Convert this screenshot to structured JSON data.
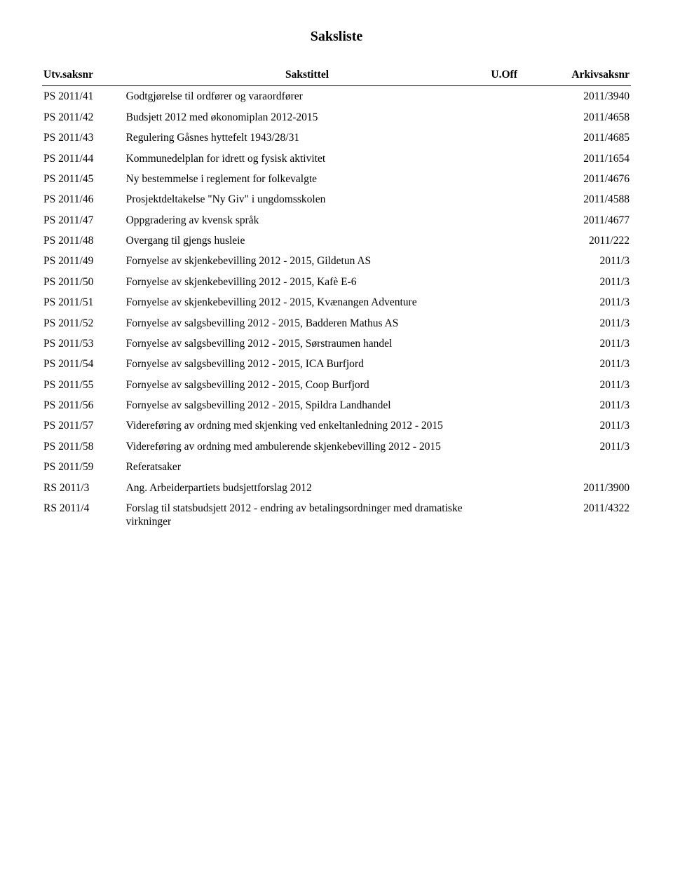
{
  "title": "Saksliste",
  "headers": {
    "id": "Utv.saksnr",
    "title": "Sakstittel",
    "uoff": "U.Off",
    "arkiv": "Arkivsaksnr"
  },
  "rows": [
    {
      "id": "PS 2011/41",
      "title": "Godtgjørelse til ordfører og varaordfører",
      "arkiv": "2011/3940"
    },
    {
      "id": "PS 2011/42",
      "title": "Budsjett 2012 med økonomiplan 2012-2015",
      "arkiv": "2011/4658"
    },
    {
      "id": "PS 2011/43",
      "title": "Regulering Gåsnes hyttefelt 1943/28/31",
      "arkiv": "2011/4685"
    },
    {
      "id": "PS 2011/44",
      "title": "Kommunedelplan for idrett og fysisk aktivitet",
      "arkiv": "2011/1654"
    },
    {
      "id": "PS 2011/45",
      "title": "Ny bestemmelse i reglement for folkevalgte",
      "arkiv": "2011/4676"
    },
    {
      "id": "PS 2011/46",
      "title": "Prosjektdeltakelse \"Ny Giv\" i ungdomsskolen",
      "arkiv": "2011/4588"
    },
    {
      "id": "PS 2011/47",
      "title": "Oppgradering av kvensk språk",
      "arkiv": "2011/4677"
    },
    {
      "id": "PS 2011/48",
      "title": "Overgang til gjengs husleie",
      "arkiv": "2011/222"
    },
    {
      "id": "PS 2011/49",
      "title": "Fornyelse av skjenkebevilling 2012 - 2015, Gildetun AS",
      "arkiv": "2011/3"
    },
    {
      "id": "PS 2011/50",
      "title": "Fornyelse av skjenkebevilling 2012 - 2015, Kafè E-6",
      "arkiv": "2011/3"
    },
    {
      "id": "PS 2011/51",
      "title": "Fornyelse av skjenkebevilling 2012 - 2015, Kvænangen Adventure",
      "arkiv": "2011/3"
    },
    {
      "id": "PS 2011/52",
      "title": "Fornyelse av salgsbevilling 2012 - 2015, Badderen Mathus AS",
      "arkiv": "2011/3"
    },
    {
      "id": "PS 2011/53",
      "title": "Fornyelse av salgsbevilling 2012 - 2015, Sørstraumen handel",
      "arkiv": "2011/3"
    },
    {
      "id": "PS 2011/54",
      "title": "Fornyelse av salgsbevilling 2012 - 2015, ICA Burfjord",
      "arkiv": "2011/3"
    },
    {
      "id": "PS 2011/55",
      "title": "Fornyelse av salgsbevilling 2012 - 2015, Coop Burfjord",
      "arkiv": "2011/3"
    },
    {
      "id": "PS 2011/56",
      "title": "Fornyelse av salgsbevilling 2012 - 2015, Spildra Landhandel",
      "arkiv": "2011/3"
    },
    {
      "id": "PS 2011/57",
      "title": "Videreføring av ordning med skjenking ved enkeltanledning 2012 - 2015",
      "arkiv": "2011/3"
    },
    {
      "id": "PS 2011/58",
      "title": "Videreføring av ordning med ambulerende skjenkebevilling 2012 - 2015",
      "arkiv": "2011/3"
    },
    {
      "id": "PS 2011/59",
      "title": "Referatsaker",
      "arkiv": ""
    },
    {
      "id": "RS 2011/3",
      "title": "Ang. Arbeiderpartiets budsjettforslag 2012",
      "arkiv": "2011/3900"
    },
    {
      "id": "RS 2011/4",
      "title": "Forslag til statsbudsjett 2012 - endring av betalingsordninger med dramatiske virkninger",
      "arkiv": "2011/4322"
    }
  ],
  "style": {
    "background_color": "#ffffff",
    "text_color": "#000000",
    "header_border_color": "#000000",
    "font_family": "Times New Roman",
    "title_fontsize": 20,
    "body_fontsize": 15.5,
    "column_widths_pct": [
      14,
      62,
      8,
      16
    ]
  }
}
